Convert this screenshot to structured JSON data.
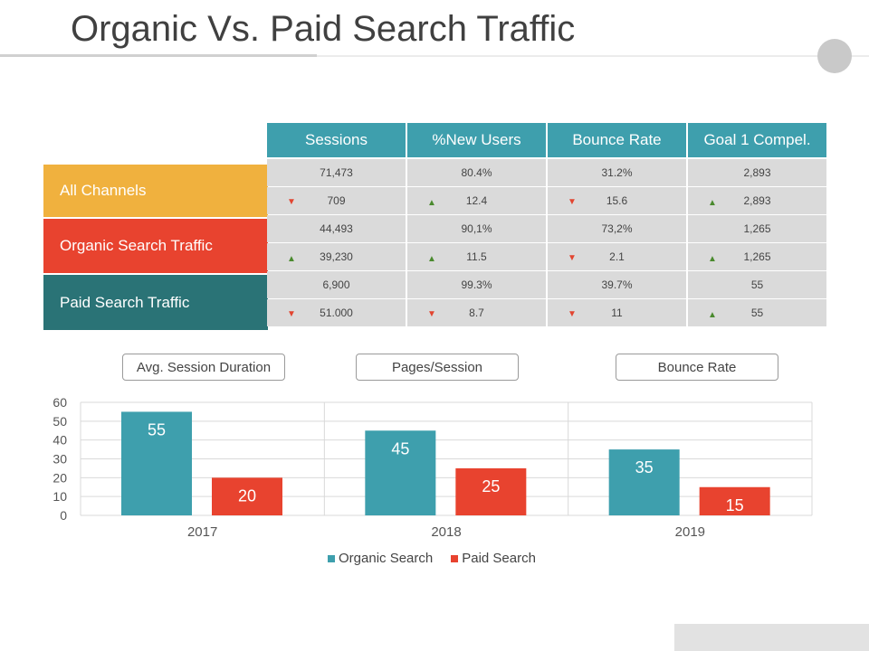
{
  "title": "Organic Vs. Paid Search Traffic",
  "table": {
    "headers": [
      "Sessions",
      "%New Users",
      "Bounce Rate",
      "Goal 1 Compel."
    ],
    "groups": [
      {
        "label": "All Channels",
        "rows": [
          [
            {
              "v": "71,473"
            },
            {
              "v": "80.4%"
            },
            {
              "v": "31.2%"
            },
            {
              "v": "2,893"
            }
          ],
          [
            {
              "v": "709",
              "dir": "down"
            },
            {
              "v": "12.4",
              "dir": "up"
            },
            {
              "v": "15.6",
              "dir": "down"
            },
            {
              "v": "2,893",
              "dir": "up"
            }
          ]
        ]
      },
      {
        "label": "Organic Search Traffic",
        "rows": [
          [
            {
              "v": "44,493"
            },
            {
              "v": "90,1%"
            },
            {
              "v": "73,2%"
            },
            {
              "v": "1,265"
            }
          ],
          [
            {
              "v": "39,230",
              "dir": "up"
            },
            {
              "v": "11.5",
              "dir": "up"
            },
            {
              "v": "2.1",
              "dir": "down"
            },
            {
              "v": "1,265",
              "dir": "up"
            }
          ]
        ]
      },
      {
        "label": "Paid Search Traffic",
        "rows": [
          [
            {
              "v": "6,900"
            },
            {
              "v": "99.3%"
            },
            {
              "v": "39.7%"
            },
            {
              "v": "55"
            }
          ],
          [
            {
              "v": "51.000",
              "dir": "down"
            },
            {
              "v": "8.7",
              "dir": "down"
            },
            {
              "v": "11",
              "dir": "down"
            },
            {
              "v": "55",
              "dir": "up"
            }
          ]
        ]
      }
    ]
  },
  "metric_buttons": [
    "Avg. Session Duration",
    "Pages/Session",
    "Bounce Rate"
  ],
  "colors": {
    "header": "#3e9fad",
    "organic": "#3e9fad",
    "paid": "#e8432f",
    "up": "#4a8a2e",
    "down": "#e24530"
  },
  "chart_data": {
    "type": "bar",
    "categories": [
      "2017",
      "2018",
      "2019"
    ],
    "series": [
      {
        "name": "Organic Search",
        "values": [
          55,
          45,
          35
        ]
      },
      {
        "name": "Paid Search",
        "values": [
          20,
          25,
          15
        ]
      }
    ],
    "ylim": [
      0,
      60
    ],
    "yticks": [
      0,
      10,
      20,
      30,
      40,
      50,
      60
    ],
    "grid": true,
    "legend": "bottom"
  }
}
